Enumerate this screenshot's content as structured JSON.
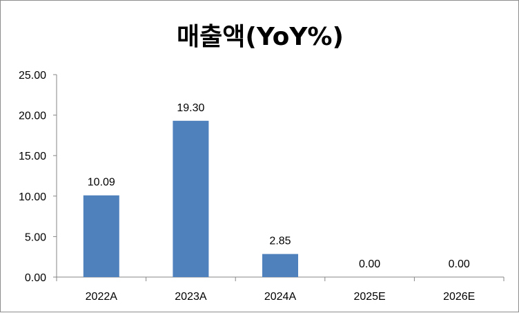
{
  "chart_data": {
    "type": "bar",
    "title": "매출액(YoY%)",
    "categories": [
      "2022A",
      "2023A",
      "2024A",
      "2025E",
      "2026E"
    ],
    "values": [
      10.09,
      19.3,
      2.85,
      0.0,
      0.0
    ],
    "data_labels": [
      "10.09",
      "19.30",
      "2.85",
      "0.00",
      "0.00"
    ],
    "y_ticks": [
      "0.00",
      "5.00",
      "10.00",
      "15.00",
      "20.00",
      "25.00"
    ],
    "ylim": [
      0,
      25
    ],
    "grid": false,
    "legend": "none",
    "bar_color": "#4f81bd"
  }
}
